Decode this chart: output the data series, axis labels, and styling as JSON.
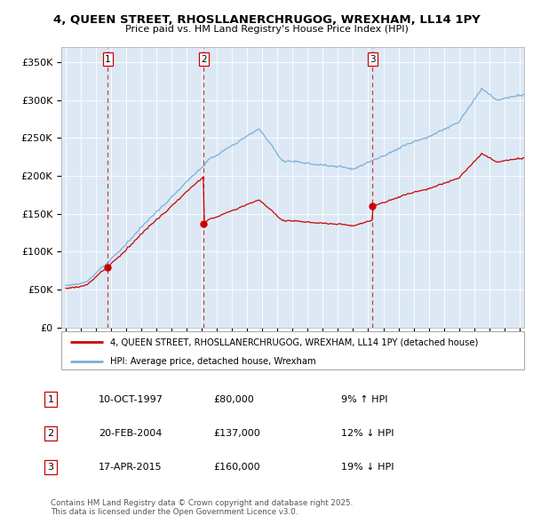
{
  "title": "4, QUEEN STREET, RHOSLLANERCHRUGOG, WREXHAM, LL14 1PY",
  "subtitle": "Price paid vs. HM Land Registry's House Price Index (HPI)",
  "property_color": "#cc0000",
  "hpi_color": "#7bafd4",
  "property_label": "4, QUEEN STREET, RHOSLLANERCHRUGOG, WREXHAM, LL14 1PY (detached house)",
  "hpi_label": "HPI: Average price, detached house, Wrexham",
  "sales": [
    {
      "num": 1,
      "date_label": "10-OCT-1997",
      "price": 80000,
      "rel": "9% ↑ HPI",
      "x_year": 1997.78
    },
    {
      "num": 2,
      "date_label": "20-FEB-2004",
      "price": 137000,
      "rel": "12% ↓ HPI",
      "x_year": 2004.13
    },
    {
      "num": 3,
      "date_label": "17-APR-2015",
      "price": 160000,
      "rel": "19% ↓ HPI",
      "x_year": 2015.29
    }
  ],
  "footnote": "Contains HM Land Registry data © Crown copyright and database right 2025.\nThis data is licensed under the Open Government Licence v3.0.",
  "ylim": [
    0,
    370000
  ],
  "yticks": [
    0,
    50000,
    100000,
    150000,
    200000,
    250000,
    300000,
    350000
  ],
  "ytick_labels": [
    "£0",
    "£50K",
    "£100K",
    "£150K",
    "£200K",
    "£250K",
    "£300K",
    "£350K"
  ],
  "xlim_start": 1994.7,
  "xlim_end": 2025.3,
  "background_color": "#dce9f5",
  "plot_bg_color": "#dce9f5",
  "grid_color": "#ffffff"
}
